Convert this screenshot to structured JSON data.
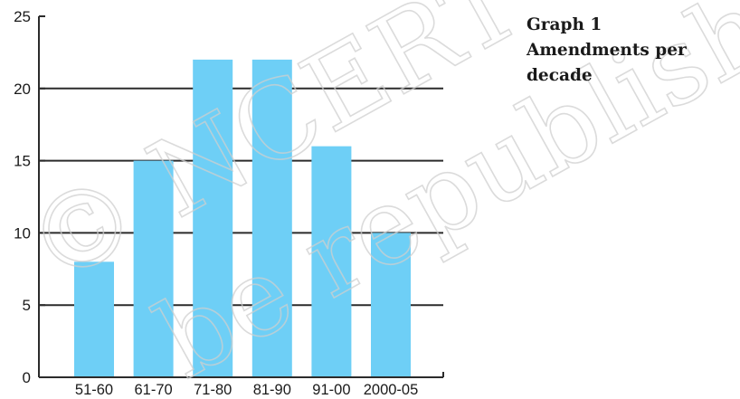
{
  "figure": {
    "caption_line1": "Graph 1",
    "caption_line2": "Amendments per decade"
  },
  "watermark": {
    "line1": "© NCERT",
    "line2": "be republished"
  },
  "chart_data": {
    "type": "bar",
    "categories": [
      "51-60",
      "61-70",
      "71-80",
      "81-90",
      "91-00",
      "2000-05"
    ],
    "values": [
      8,
      15,
      22,
      22,
      16,
      10
    ],
    "ylim": [
      0,
      25
    ],
    "yticks": [
      0,
      5,
      10,
      15,
      20,
      25
    ],
    "grid": true,
    "title": "",
    "xlabel": "",
    "ylabel": "",
    "bar_color": "#6ecff6",
    "grid_color": "#2b2b2b"
  }
}
